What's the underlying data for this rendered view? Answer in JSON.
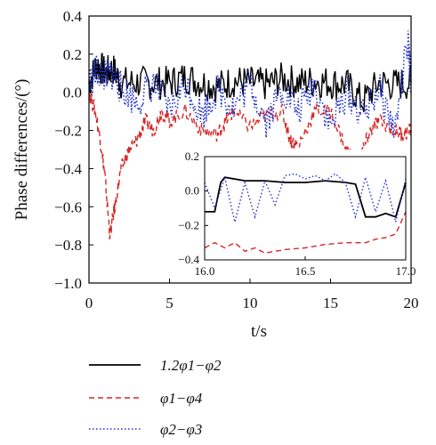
{
  "chart_data": {
    "type": "line",
    "ylabel": "Phase differences/(°)",
    "xlabel": "t/s",
    "xlim": [
      0,
      20
    ],
    "ylim": [
      -1.0,
      0.4
    ],
    "x_ticks": [
      "0",
      "5",
      "10",
      "15",
      "20"
    ],
    "y_ticks": [
      "0.4",
      "0.2",
      "0.0",
      "−0.2",
      "−0.4",
      "−0.6",
      "−0.8",
      "−1.0"
    ],
    "series": [
      {
        "name": "1.2φ1−φ2",
        "color": "#000000",
        "style": "solid",
        "x": [
          0,
          0.5,
          1,
          1.5,
          2,
          3,
          4,
          5,
          6,
          7,
          8,
          9,
          10,
          11,
          12,
          13,
          14,
          15,
          16,
          17,
          18,
          19,
          20
        ],
        "y": [
          0.05,
          0.15,
          0.1,
          0.12,
          0.05,
          0.05,
          0.05,
          0.05,
          0.08,
          0.05,
          0.03,
          0.06,
          0.05,
          0.04,
          0.07,
          0.05,
          0.06,
          0.05,
          0.04,
          -0.05,
          0.05,
          0.04,
          0.05
        ]
      },
      {
        "name": "φ1−φ4",
        "color": "#d62728",
        "style": "dashed",
        "x": [
          0,
          0.4,
          0.8,
          1.0,
          1.3,
          1.6,
          2.0,
          2.5,
          3.0,
          3.5,
          4.0,
          4.5,
          5.0,
          6.0,
          7.0,
          8.0,
          8.5,
          9.0,
          10.0,
          11.0,
          12.0,
          12.5,
          13.0,
          14.0,
          15.0,
          16.0,
          16.5,
          17.0,
          17.5,
          18.0,
          19.0,
          19.5,
          20.0
        ],
        "y": [
          0.0,
          -0.1,
          -0.3,
          -0.45,
          -0.75,
          -0.6,
          -0.4,
          -0.3,
          -0.25,
          -0.15,
          -0.2,
          -0.1,
          -0.15,
          -0.1,
          -0.2,
          -0.22,
          -0.15,
          -0.1,
          -0.18,
          -0.12,
          -0.1,
          -0.25,
          -0.28,
          -0.1,
          -0.1,
          -0.3,
          -0.35,
          -0.3,
          -0.2,
          -0.15,
          -0.2,
          -0.22,
          -0.2
        ]
      },
      {
        "name": "φ2−φ3",
        "color": "#2233cc",
        "style": "dotted",
        "x": [
          0,
          0.5,
          1,
          1.5,
          2,
          3,
          4,
          5,
          6,
          7,
          8,
          9,
          10,
          11,
          12,
          13,
          14,
          15,
          16,
          17,
          18,
          19,
          19.8,
          20
        ],
        "y": [
          0.05,
          0.12,
          0.08,
          0.1,
          0.02,
          -0.05,
          0.05,
          -0.1,
          0.05,
          -0.12,
          0.02,
          -0.08,
          0.05,
          -0.15,
          0.02,
          -0.1,
          0.05,
          -0.18,
          0.0,
          -0.12,
          0.02,
          -0.2,
          0.27,
          0.05
        ]
      }
    ],
    "inset": {
      "xlim": [
        16.0,
        17.0
      ],
      "ylim": [
        -0.4,
        0.2
      ],
      "x_ticks": [
        "16.0",
        "16.5",
        "17.0"
      ],
      "y_ticks": [
        "0.2",
        "0.0",
        "−0.2",
        "−0.4"
      ],
      "series": [
        {
          "name": "1.2φ1−φ2",
          "x": [
            16.0,
            16.05,
            16.08,
            16.1,
            16.2,
            16.3,
            16.4,
            16.5,
            16.6,
            16.7,
            16.75,
            16.8,
            16.85,
            16.9,
            16.95,
            17.0
          ],
          "y": [
            -0.12,
            -0.12,
            0.05,
            0.08,
            0.06,
            0.06,
            0.05,
            0.05,
            0.06,
            0.05,
            0.04,
            -0.15,
            -0.15,
            -0.13,
            -0.15,
            0.05
          ]
        },
        {
          "name": "φ1−φ4",
          "x": [
            16.0,
            16.05,
            16.1,
            16.15,
            16.2,
            16.25,
            16.3,
            16.4,
            16.5,
            16.6,
            16.7,
            16.8,
            16.85,
            16.9,
            16.95,
            17.0
          ],
          "y": [
            -0.33,
            -0.3,
            -0.33,
            -0.3,
            -0.35,
            -0.33,
            -0.36,
            -0.34,
            -0.33,
            -0.31,
            -0.3,
            -0.3,
            -0.28,
            -0.27,
            -0.25,
            -0.12
          ]
        },
        {
          "name": "φ2−φ3",
          "x": [
            16.0,
            16.05,
            16.1,
            16.15,
            16.2,
            16.25,
            16.3,
            16.35,
            16.4,
            16.45,
            16.5,
            16.55,
            16.6,
            16.65,
            16.7,
            16.75,
            16.8,
            16.85,
            16.9,
            16.95,
            17.0
          ],
          "y": [
            0.05,
            -0.1,
            0.08,
            -0.18,
            0.05,
            -0.15,
            0.06,
            -0.08,
            0.09,
            0.1,
            0.07,
            0.09,
            0.06,
            0.1,
            0.05,
            -0.15,
            0.08,
            -0.12,
            0.06,
            -0.18,
            0.07
          ]
        }
      ]
    }
  }
}
